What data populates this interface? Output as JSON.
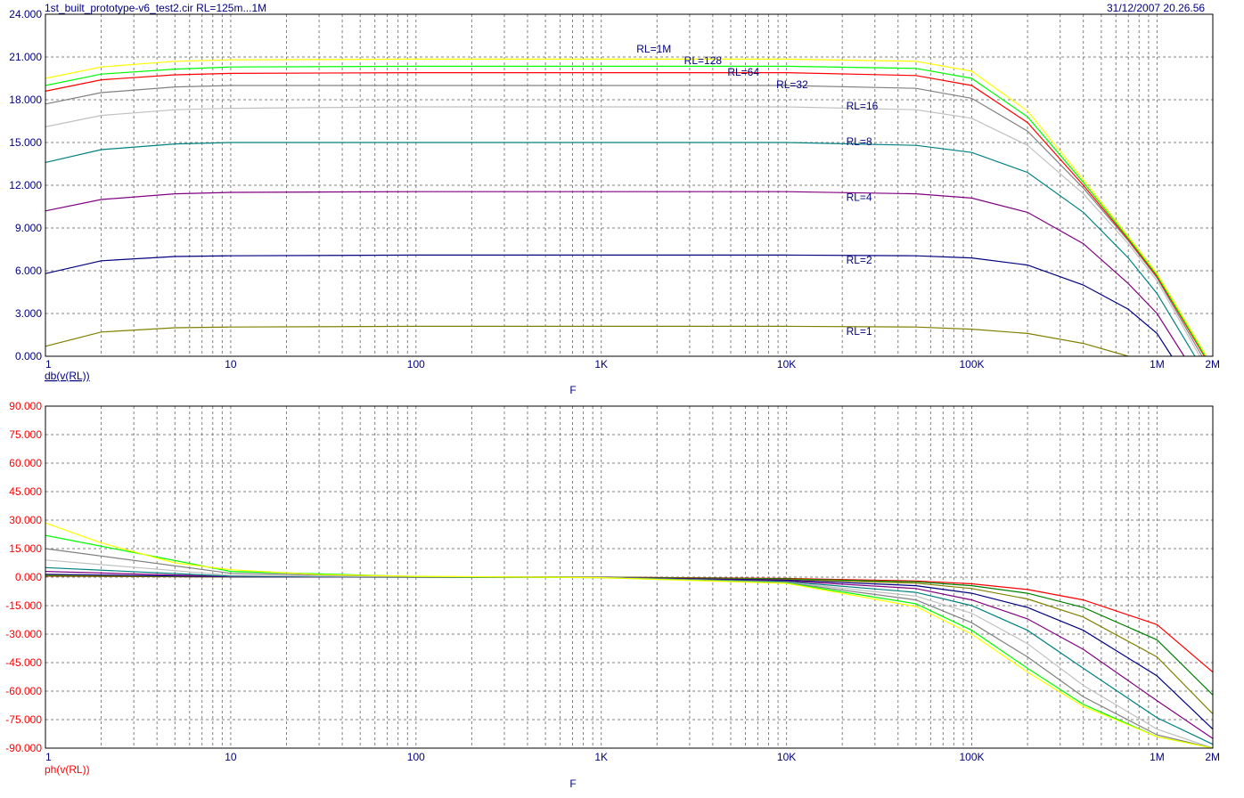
{
  "header": {
    "title": "1st_built_prototype-v6_test2.cir RL=125m...1M",
    "date": "31/12/2007 20.26.56"
  },
  "colors": {
    "background": "#ffffff",
    "grid": "#808080",
    "frame": "#000000",
    "tick_labels": "#000080",
    "phase_axis": "#ff0000",
    "label": "#000080"
  },
  "chart_data": [
    {
      "type": "line",
      "title": "",
      "ylabel": "db(v(RL))",
      "xlabel": "F",
      "xscale": "log",
      "xlim": [
        1,
        2000000
      ],
      "ylim": [
        0,
        24
      ],
      "grid": true,
      "x_ticks": [
        1,
        10,
        100,
        1000,
        10000,
        100000,
        1000000,
        2000000
      ],
      "x_tick_labels": [
        "1",
        "10",
        "100",
        "1K",
        "10K",
        "100K",
        "1M",
        "2M"
      ],
      "y_ticks": [
        0,
        3,
        6,
        9,
        12,
        15,
        18,
        21,
        24
      ],
      "y_tick_labels": [
        "0.000",
        "3.000",
        "6.000",
        "9.000",
        "12.000",
        "15.000",
        "18.000",
        "21.000",
        "24.000"
      ],
      "series": [
        {
          "name": "RL=1",
          "color": "#808000",
          "label_x": 21000,
          "label_y": 1.5,
          "x": [
            1,
            2,
            5,
            10,
            100,
            1000,
            10000,
            50000,
            100000,
            200000,
            400000,
            700000
          ],
          "y": [
            0.7,
            1.7,
            2.0,
            2.05,
            2.1,
            2.1,
            2.1,
            2.05,
            1.9,
            1.6,
            0.9,
            0.0
          ]
        },
        {
          "name": "RL=2",
          "color": "#000080",
          "label_x": 21000,
          "label_y": 6.5,
          "x": [
            1,
            2,
            5,
            10,
            100,
            1000,
            10000,
            50000,
            100000,
            200000,
            400000,
            700000,
            1000000,
            1200000
          ],
          "y": [
            5.8,
            6.7,
            7.0,
            7.05,
            7.1,
            7.1,
            7.1,
            7.05,
            6.9,
            6.4,
            5.0,
            3.3,
            1.6,
            0.0
          ]
        },
        {
          "name": "RL=4",
          "color": "#800080",
          "label_x": 21000,
          "label_y": 10.9,
          "x": [
            1,
            2,
            5,
            10,
            100,
            1000,
            10000,
            50000,
            100000,
            200000,
            400000,
            700000,
            1000000,
            1400000
          ],
          "y": [
            10.2,
            11.0,
            11.4,
            11.5,
            11.55,
            11.55,
            11.55,
            11.4,
            11.1,
            10.1,
            7.9,
            5.1,
            3.0,
            0.0
          ]
        },
        {
          "name": "RL=8",
          "color": "#008080",
          "label_x": 21000,
          "label_y": 14.8,
          "x": [
            1,
            2,
            5,
            10,
            100,
            1000,
            10000,
            50000,
            100000,
            200000,
            400000,
            700000,
            1000000,
            1600000
          ],
          "y": [
            13.6,
            14.5,
            14.9,
            15.0,
            15.0,
            15.0,
            15.0,
            14.8,
            14.3,
            12.9,
            10.1,
            6.9,
            4.4,
            0.0
          ]
        },
        {
          "name": "RL=16",
          "color": "#c0c0c0",
          "label_x": 21000,
          "label_y": 17.3,
          "x": [
            1,
            2,
            5,
            10,
            100,
            1000,
            10000,
            50000,
            100000,
            200000,
            400000,
            700000,
            1000000,
            1700000
          ],
          "y": [
            16.1,
            16.9,
            17.3,
            17.4,
            17.5,
            17.5,
            17.5,
            17.3,
            16.7,
            14.8,
            11.4,
            7.9,
            5.3,
            0.0
          ]
        },
        {
          "name": "RL=32",
          "color": "#808080",
          "label_x": 8800,
          "label_y": 18.8,
          "x": [
            1,
            2,
            5,
            10,
            100,
            1000,
            10000,
            50000,
            100000,
            200000,
            400000,
            700000,
            1000000,
            1750000
          ],
          "y": [
            17.7,
            18.5,
            18.9,
            19.0,
            19.0,
            19.0,
            19.0,
            18.8,
            18.1,
            15.8,
            11.8,
            8.1,
            5.5,
            0.0
          ]
        },
        {
          "name": "RL=64",
          "color": "#ff0000",
          "label_x": 4800,
          "label_y": 19.7,
          "x": [
            1,
            2,
            5,
            10,
            100,
            1000,
            10000,
            50000,
            100000,
            200000,
            400000,
            700000,
            1000000,
            1800000
          ],
          "y": [
            18.6,
            19.4,
            19.75,
            19.85,
            19.9,
            19.9,
            19.9,
            19.7,
            19.0,
            16.4,
            12.0,
            8.2,
            5.6,
            0.0
          ]
        },
        {
          "name": "RL=128",
          "color": "#00ff00",
          "label_x": 2800,
          "label_y": 20.5,
          "x": [
            1,
            2,
            5,
            10,
            100,
            1000,
            10000,
            50000,
            100000,
            200000,
            400000,
            700000,
            1000000,
            1820000
          ],
          "y": [
            19.0,
            19.8,
            20.15,
            20.3,
            20.35,
            20.35,
            20.35,
            20.2,
            19.5,
            16.8,
            12.2,
            8.3,
            5.7,
            0.0
          ]
        },
        {
          "name": "RL=1M",
          "color": "#ffff00",
          "label_x": 1550,
          "label_y": 21.3,
          "x": [
            1,
            2,
            5,
            10,
            100,
            1000,
            10000,
            50000,
            100000,
            200000,
            400000,
            700000,
            1000000,
            1850000
          ],
          "y": [
            19.5,
            20.3,
            20.7,
            20.8,
            20.85,
            20.85,
            20.85,
            20.7,
            20.0,
            17.2,
            12.4,
            8.4,
            5.8,
            0.0
          ]
        }
      ]
    },
    {
      "type": "line",
      "title": "",
      "ylabel": "ph(v(RL))",
      "xlabel": "F",
      "xscale": "log",
      "xlim": [
        1,
        2000000
      ],
      "ylim": [
        -90,
        90
      ],
      "grid": true,
      "x_ticks": [
        1,
        10,
        100,
        1000,
        10000,
        100000,
        1000000,
        2000000
      ],
      "x_tick_labels": [
        "1",
        "10",
        "100",
        "1K",
        "10K",
        "100K",
        "1M",
        "2M"
      ],
      "y_ticks": [
        -90,
        -75,
        -60,
        -45,
        -30,
        -15,
        0,
        15,
        30,
        45,
        60,
        75,
        90
      ],
      "y_tick_labels": [
        "-90.000",
        "-75.000",
        "-60.000",
        "-45.000",
        "-30.000",
        "-15.000",
        "0.000",
        "15.000",
        "30.000",
        "45.000",
        "60.000",
        "75.000",
        "90.000"
      ],
      "series": [
        {
          "name": "RL=1",
          "color": "#ff0000",
          "x": [
            1,
            10,
            100,
            1000,
            10000,
            50000,
            100000,
            200000,
            400000,
            1000000,
            2000000
          ],
          "y": [
            0.5,
            0.1,
            0.0,
            0.0,
            -0.7,
            -2.0,
            -3.5,
            -6.5,
            -12.0,
            -25.0,
            -50.0
          ]
        },
        {
          "name": "RL=2",
          "color": "#008000",
          "x": [
            1,
            10,
            100,
            1000,
            10000,
            50000,
            100000,
            200000,
            400000,
            1000000,
            2000000
          ],
          "y": [
            0.7,
            0.1,
            0.0,
            0.0,
            -0.9,
            -2.5,
            -4.5,
            -8.5,
            -16.0,
            -33.0,
            -62.0
          ]
        },
        {
          "name": "RL=4",
          "color": "#808000",
          "x": [
            1,
            10,
            100,
            1000,
            10000,
            50000,
            100000,
            200000,
            400000,
            1000000,
            2000000
          ],
          "y": [
            1.0,
            0.1,
            0.0,
            0.0,
            -1.2,
            -3.2,
            -6.0,
            -11.5,
            -21.0,
            -42.0,
            -72.0
          ]
        },
        {
          "name": "RL=8",
          "color": "#000080",
          "x": [
            1,
            10,
            100,
            1000,
            10000,
            50000,
            100000,
            200000,
            400000,
            1000000,
            2000000
          ],
          "y": [
            1.5,
            0.2,
            0.0,
            -0.1,
            -1.6,
            -4.5,
            -8.5,
            -16.0,
            -28.0,
            -52.0,
            -80.0
          ]
        },
        {
          "name": "RL=16",
          "color": "#800080",
          "x": [
            1,
            10,
            100,
            1000,
            10000,
            50000,
            100000,
            200000,
            400000,
            1000000,
            2000000
          ],
          "y": [
            3.0,
            0.3,
            0.0,
            -0.1,
            -2.0,
            -6.0,
            -12.0,
            -22.0,
            -38.0,
            -65.0,
            -85.0
          ]
        },
        {
          "name": "RL=32",
          "color": "#008080",
          "x": [
            1,
            10,
            100,
            1000,
            10000,
            50000,
            100000,
            200000,
            400000,
            1000000,
            2000000
          ],
          "y": [
            5.0,
            0.5,
            0.0,
            -0.2,
            -2.4,
            -8.0,
            -15.0,
            -28.0,
            -48.0,
            -74.0,
            -88.0
          ]
        },
        {
          "name": "RL=64",
          "color": "#c0c0c0",
          "x": [
            1,
            10,
            100,
            1000,
            10000,
            50000,
            100000,
            200000,
            400000,
            1000000,
            2000000
          ],
          "y": [
            9.0,
            1.0,
            0.1,
            -0.2,
            -2.7,
            -10.0,
            -19.0,
            -35.0,
            -57.0,
            -80.0,
            -90.0
          ]
        },
        {
          "name": "RL=128",
          "color": "#808080",
          "x": [
            1,
            10,
            100,
            1000,
            10000,
            50000,
            100000,
            200000,
            400000,
            1000000,
            2000000
          ],
          "y": [
            15.0,
            2.0,
            0.2,
            -0.2,
            -2.9,
            -12.0,
            -24.0,
            -42.0,
            -63.0,
            -83.0,
            -90.0
          ]
        },
        {
          "name": "RL=1M",
          "color": "#00ff00",
          "x": [
            1,
            10,
            100,
            1000,
            10000,
            50000,
            100000,
            200000,
            400000,
            1000000,
            2000000
          ],
          "y": [
            22.0,
            3.0,
            0.3,
            -0.3,
            -3.1,
            -14.0,
            -28.0,
            -48.0,
            -67.0,
            -84.0,
            -90.0
          ]
        },
        {
          "name": "RL=1M",
          "color": "#ffff00",
          "x": [
            1,
            2,
            5,
            10,
            30,
            100,
            1000,
            10000,
            50000,
            100000,
            200000,
            400000,
            1000000,
            2000000
          ],
          "y": [
            28.5,
            18.0,
            7.5,
            3.9,
            1.3,
            0.4,
            -0.3,
            -3.3,
            -15.5,
            -30.0,
            -50.0,
            -68.0,
            -84.0,
            -90.0
          ]
        }
      ]
    }
  ]
}
